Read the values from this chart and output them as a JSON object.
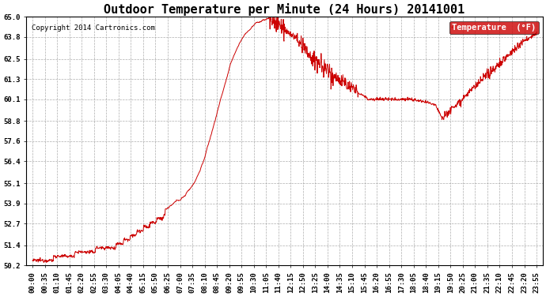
{
  "title": "Outdoor Temperature per Minute (24 Hours) 20141001",
  "copyright_text": "Copyright 2014 Cartronics.com",
  "legend_label": "Temperature  (°F)",
  "line_color": "#cc0000",
  "background_color": "#ffffff",
  "grid_color": "#999999",
  "legend_bg": "#cc0000",
  "legend_fg": "#ffffff",
  "ylim": [
    50.2,
    65.0
  ],
  "yticks": [
    50.2,
    51.4,
    52.7,
    53.9,
    55.1,
    56.4,
    57.6,
    58.8,
    60.1,
    61.3,
    62.5,
    63.8,
    65.0
  ],
  "x_tick_labels": [
    "00:00",
    "00:35",
    "01:10",
    "01:45",
    "02:20",
    "02:55",
    "03:30",
    "04:05",
    "04:40",
    "05:15",
    "05:50",
    "06:25",
    "07:00",
    "07:35",
    "08:10",
    "08:45",
    "09:20",
    "09:55",
    "10:30",
    "11:05",
    "11:40",
    "12:15",
    "12:50",
    "13:25",
    "14:00",
    "14:35",
    "15:10",
    "15:45",
    "16:20",
    "16:55",
    "17:30",
    "18:05",
    "18:40",
    "19:15",
    "19:50",
    "20:25",
    "21:00",
    "21:35",
    "22:10",
    "22:45",
    "23:20",
    "23:55"
  ],
  "title_fontsize": 11,
  "axis_fontsize": 6.5,
  "copyright_fontsize": 6.5,
  "legend_fontsize": 7.5
}
